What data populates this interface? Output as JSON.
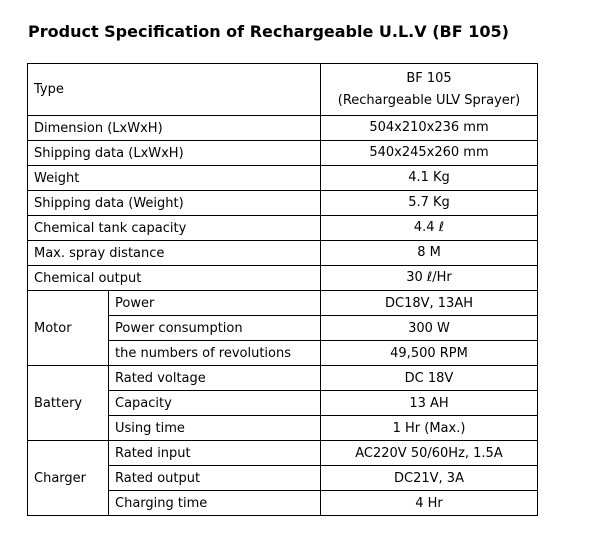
{
  "title": "Product Specification of Rechargeable U.L.V (BF 105)",
  "table": {
    "rows": [
      {
        "label": "Type",
        "value": [
          "BF 105",
          "(Rechargeable ULV Sprayer)"
        ]
      },
      {
        "label": "Dimension (LxWxH)",
        "value": [
          "504x210x236 mm"
        ]
      },
      {
        "label": "Shipping data (LxWxH)",
        "value": [
          "540x245x260 mm"
        ]
      },
      {
        "label": "Weight",
        "value": [
          "4.1 Kg"
        ]
      },
      {
        "label": "Shipping data (Weight)",
        "value": [
          "5.7 Kg"
        ]
      },
      {
        "label": "Chemical tank capacity",
        "value": [
          "4.4 ℓ"
        ]
      },
      {
        "label": "Max. spray distance",
        "value": [
          "8 M"
        ]
      },
      {
        "label": "Chemical output",
        "value": [
          "30 ℓ/Hr"
        ]
      },
      {
        "group": "Motor",
        "items": [
          {
            "label": "Power",
            "value": "DC18V, 13AH"
          },
          {
            "label": "Power consumption",
            "value": "300 W"
          },
          {
            "label": "the numbers of revolutions",
            "value": "49,500 RPM"
          }
        ]
      },
      {
        "group": "Battery",
        "items": [
          {
            "label": "Rated voltage",
            "value": "DC 18V"
          },
          {
            "label": "Capacity",
            "value": "13 AH"
          },
          {
            "label": "Using time",
            "value": "1 Hr (Max.)"
          }
        ]
      },
      {
        "group": "Charger",
        "items": [
          {
            "label": "Rated input",
            "value": "AC220V 50/60Hz, 1.5A"
          },
          {
            "label": "Rated output",
            "value": "DC21V, 3A"
          },
          {
            "label": "Charging time",
            "value": "4 Hr"
          }
        ]
      }
    ]
  }
}
